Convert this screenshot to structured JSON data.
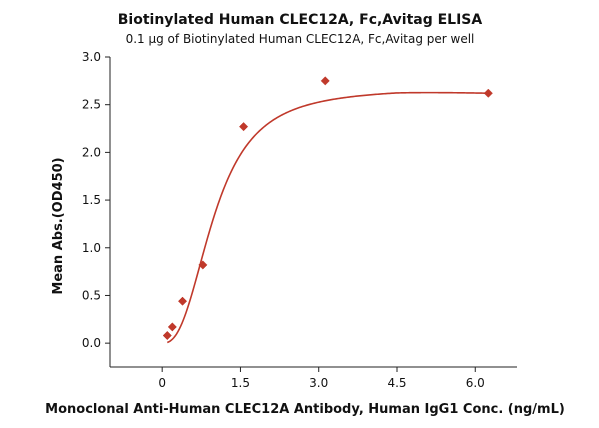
{
  "chart_data": {
    "type": "scatter",
    "title": "Biotinylated Human CLEC12A, Fc,Avitag ELISA",
    "subtitle": "0.1 µg of Biotinylated Human CLEC12A, Fc,Avitag per well",
    "xlabel": "Monoclonal Anti-Human CLEC12A Antibody, Human IgG1 Conc. (ng/mL)",
    "ylabel": "Mean Abs.(OD450)",
    "xlim": [
      -1.0,
      6.8
    ],
    "ylim": [
      -0.25,
      3.0
    ],
    "xticks": [
      0,
      1.5,
      3.0,
      4.5,
      6.0
    ],
    "xtick_labels": [
      "0",
      "1.5",
      "3.0",
      "4.5",
      "6.0"
    ],
    "yticks": [
      0,
      0.5,
      1.0,
      1.5,
      2.0,
      2.5,
      3.0
    ],
    "ytick_labels": [
      "0.0",
      "0.5",
      "1.0",
      "1.5",
      "2.0",
      "2.5",
      "3.0"
    ],
    "grid": false,
    "legend": "none",
    "marker": "diamond",
    "series": [
      {
        "points": [
          {
            "x": 0.098,
            "y": 0.08
          },
          {
            "x": 0.195,
            "y": 0.17
          },
          {
            "x": 0.39,
            "y": 0.44
          },
          {
            "x": 0.78,
            "y": 0.82
          },
          {
            "x": 1.56,
            "y": 2.27
          },
          {
            "x": 3.125,
            "y": 2.75
          },
          {
            "x": 6.25,
            "y": 2.62
          }
        ],
        "fit": {
          "type": "4PL",
          "bottom": 0.0,
          "top": 2.68,
          "ec50": 1.0,
          "hill": 2.55,
          "tail_slope": -0.02
        },
        "color": "#c0392b"
      }
    ]
  }
}
